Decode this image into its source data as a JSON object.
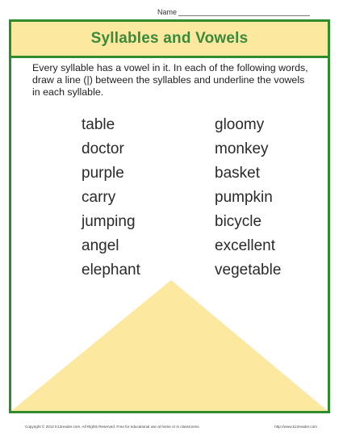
{
  "header": {
    "name_label": "Name"
  },
  "worksheet": {
    "title": "Syllables and Vowels",
    "instructions": "Every syllable has a vowel in it. In each of the following words, draw a line (|) between the syllables and underline the vowels in each syllable.",
    "left_words": [
      "table",
      "doctor",
      "purple",
      "carry",
      "jumping",
      "angel",
      "elephant"
    ],
    "right_words": [
      "gloomy",
      "monkey",
      "basket",
      "pumpkin",
      "bicycle",
      "excellent",
      "vegetable"
    ]
  },
  "colors": {
    "border": "#2e8b2e",
    "title_band": "#fde8a0",
    "title_text": "#3a8a3a",
    "triangle": "#fde8a0"
  },
  "footer": {
    "copyright": "Copyright © 2012 K12reader.com. All Rights Reserved. Free for educational use at home or in classrooms.",
    "url": "http://www.k12reader.com"
  }
}
